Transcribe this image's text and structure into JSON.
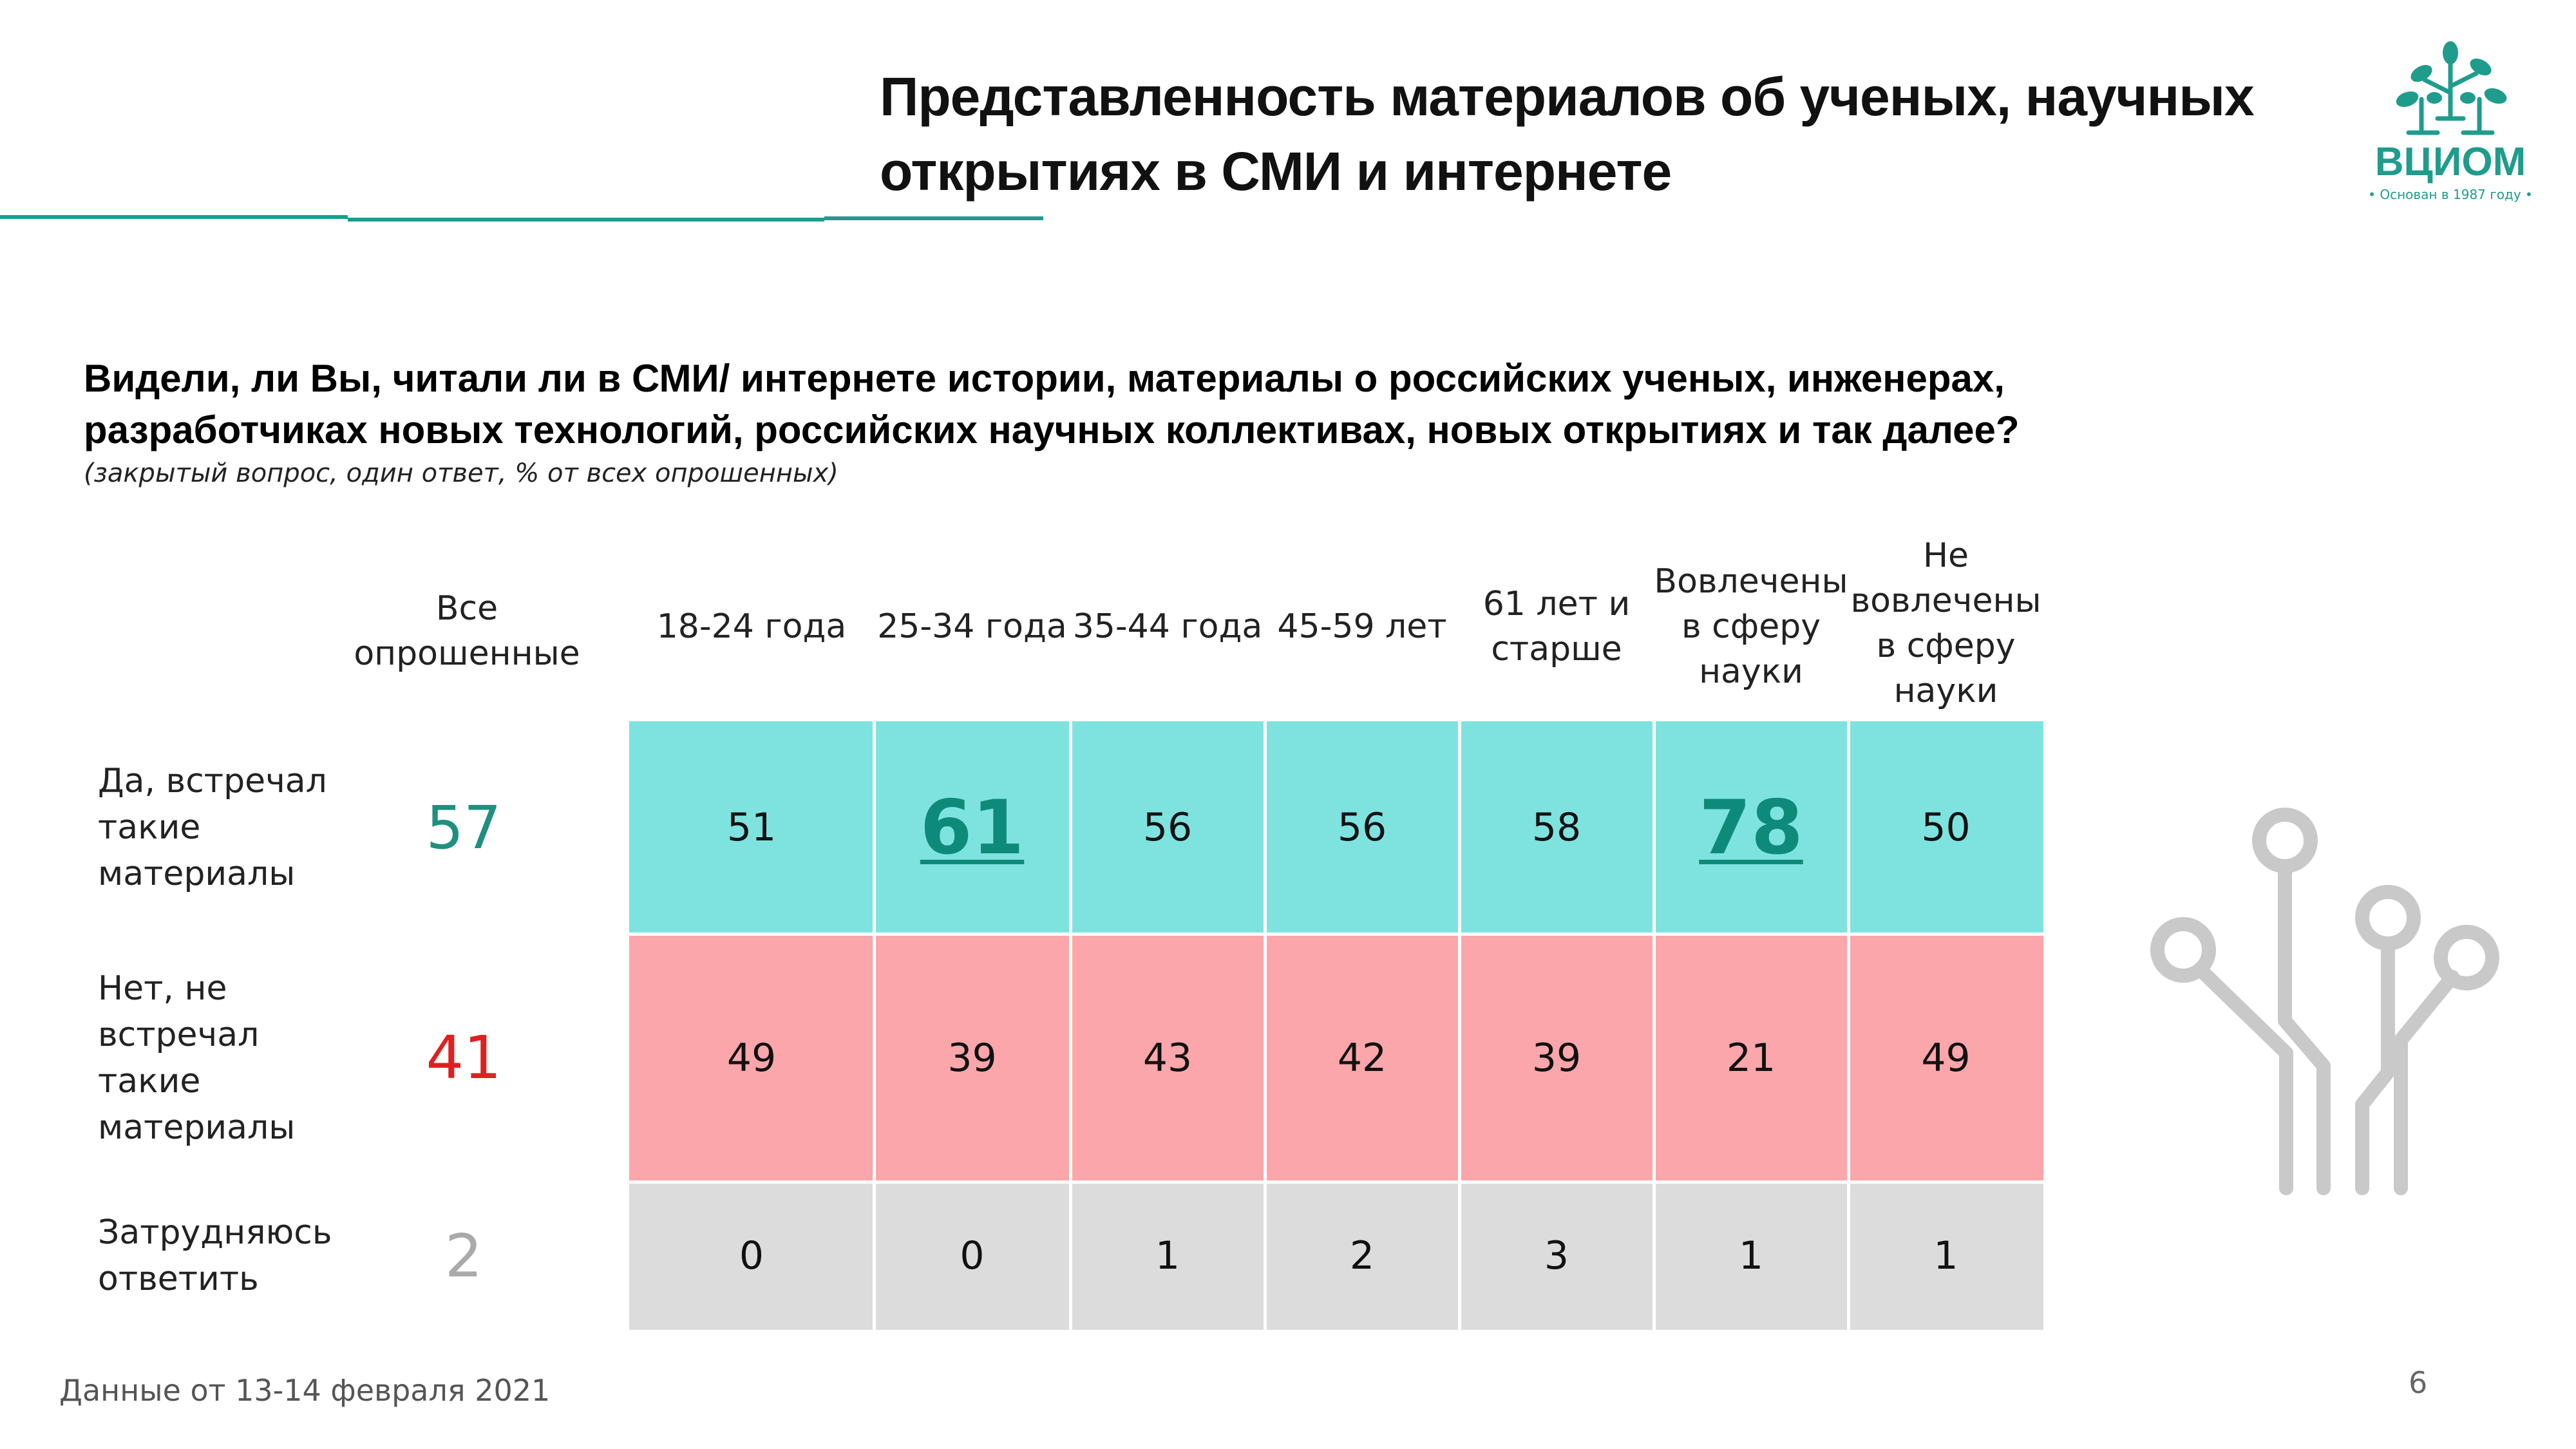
{
  "header": {
    "title_line1": "Представленность материалов об ученых, научных",
    "title_line2": "открытиях в СМИ и интернете",
    "logo_text": "ВЦИОМ",
    "logo_tagline": "• Основан в 1987 году •",
    "accent_color": "#1f9c8c"
  },
  "question": {
    "line1": "Видели, ли Вы, читали ли в СМИ/ интернете истории, материалы о российских ученых, инженерах,",
    "line2": "разработчиках новых технологий, российских научных коллективах, новых открытиях и так далее?",
    "note": "(закрытый вопрос, один ответ, % от всех опрошенных)"
  },
  "table": {
    "total_header": [
      "Все",
      "опрошенные"
    ],
    "columns": [
      [
        "18-24 года"
      ],
      [
        "25-34 года"
      ],
      [
        "35-44 года"
      ],
      [
        "45-59 лет"
      ],
      [
        "61 лет и",
        "старше"
      ],
      [
        "Вовлечены",
        "в сферу",
        "науки"
      ],
      [
        "Не",
        "вовлечены",
        "в сферу",
        "науки"
      ]
    ],
    "rows": [
      {
        "label": [
          "Да, встречал",
          "такие",
          "материалы"
        ],
        "total": "57",
        "total_color": "#1f8f7f",
        "values": [
          "51",
          "61",
          "56",
          "56",
          "58",
          "78",
          "50"
        ],
        "highlight": [
          false,
          true,
          false,
          false,
          false,
          true,
          false
        ],
        "fill": "#7ee3df"
      },
      {
        "label": [
          "Нет, не",
          "встречал такие",
          "материалы"
        ],
        "total": "41",
        "total_color": "#e02020",
        "values": [
          "49",
          "39",
          "43",
          "42",
          "39",
          "21",
          "49"
        ],
        "highlight": [
          false,
          false,
          false,
          false,
          false,
          false,
          false
        ],
        "fill": "#fba6ab"
      },
      {
        "label": [
          "Затрудняюсь",
          "ответить"
        ],
        "total": "2",
        "total_color": "#aaaaaa",
        "values": [
          "0",
          "0",
          "1",
          "2",
          "3",
          "1",
          "1"
        ],
        "highlight": [
          false,
          false,
          false,
          false,
          false,
          false,
          false
        ],
        "fill": "#dcdcdc"
      }
    ]
  },
  "footer": {
    "source": "Данные от 13-14 февраля 2021",
    "page_number": "6"
  },
  "icons": {
    "logo": "tree-logo-icon",
    "decoration": "circuit-icon"
  }
}
